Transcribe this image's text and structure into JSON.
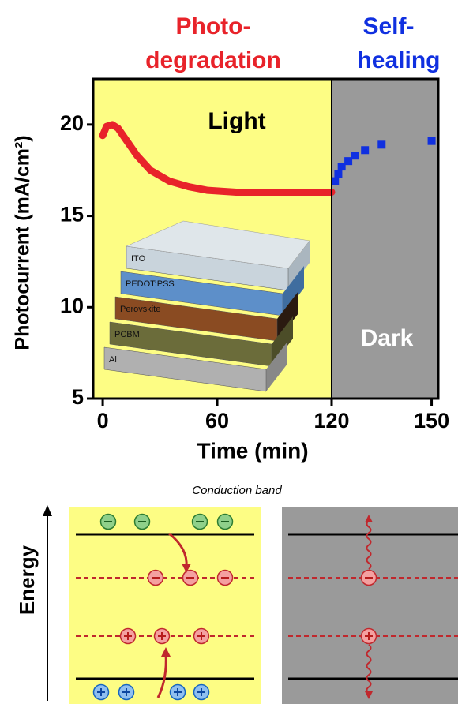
{
  "chart_data": [
    {
      "type": "line",
      "title_lines": [
        "Photo-",
        "degradation"
      ],
      "title_color": "#e8232a",
      "annotation": "Light",
      "background": "#fdfd84",
      "x": [
        0,
        2,
        5,
        8,
        12,
        18,
        25,
        35,
        45,
        55,
        70,
        90,
        110,
        120
      ],
      "values": [
        19.4,
        19.9,
        20.0,
        19.8,
        19.2,
        18.3,
        17.5,
        16.9,
        16.6,
        16.4,
        16.3,
        16.3,
        16.3,
        16.3
      ],
      "color": "#e8232a",
      "xlim": [
        -5,
        120
      ],
      "xticks": [
        0,
        60,
        120
      ],
      "ylim": [
        5,
        22.5
      ],
      "yticks": [
        5,
        10,
        15,
        20
      ],
      "y_label": "Photocurrent (mA/cm²)",
      "x_label": "Time (min)"
    },
    {
      "type": "scatter",
      "title_lines": [
        "Self-",
        "healing"
      ],
      "title_color": "#1030e0",
      "annotation": "Dark",
      "background": "#9a9a9a",
      "x": [
        121,
        122,
        123,
        125,
        127,
        130,
        135,
        150
      ],
      "values": [
        16.9,
        17.3,
        17.7,
        18.0,
        18.3,
        18.6,
        18.9,
        19.1
      ],
      "color": "#1030e0",
      "xlim": [
        120,
        152
      ],
      "xticks": [
        150
      ],
      "ylim": [
        5,
        22.5
      ]
    }
  ],
  "inset": {
    "layers": [
      "ITO",
      "PEDOT:PSS",
      "Perovskite",
      "PCBM",
      "Al"
    ]
  },
  "diagram": {
    "title": "Conduction band",
    "axis_label": "Energy"
  }
}
